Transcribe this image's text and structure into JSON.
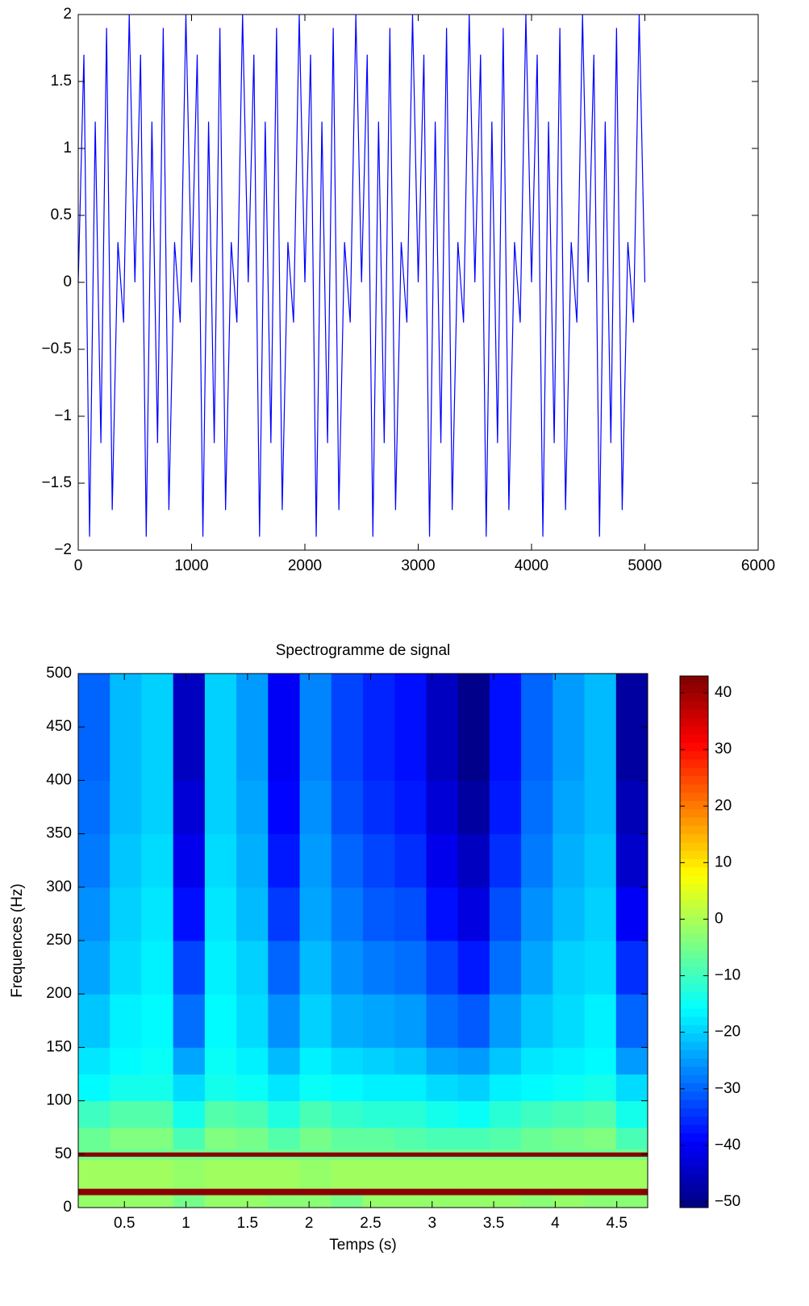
{
  "chart_data": [
    {
      "type": "line",
      "x": [
        0,
        50,
        100,
        150,
        200,
        250,
        300,
        350,
        400,
        450,
        500,
        550,
        600,
        650,
        700,
        750,
        800,
        850,
        900,
        950,
        1000,
        1050,
        1100,
        1150,
        1200,
        1250,
        1300,
        1350,
        1400,
        1450,
        1500,
        1550,
        1600,
        1650,
        1700,
        1750,
        1800,
        1850,
        1900,
        1950,
        2000,
        2050,
        2100,
        2150,
        2200,
        2250,
        2300,
        2350,
        2400,
        2450,
        2500,
        2550,
        2600,
        2650,
        2700,
        2750,
        2800,
        2850,
        2900,
        2950,
        3000,
        3050,
        3100,
        3150,
        3200,
        3250,
        3300,
        3350,
        3400,
        3450,
        3500,
        3550,
        3600,
        3650,
        3700,
        3750,
        3800,
        3850,
        3900,
        3950,
        4000,
        4050,
        4100,
        4150,
        4200,
        4250,
        4300,
        4350,
        4400,
        4450,
        4500,
        4550,
        4600,
        4650,
        4700,
        4750,
        4800,
        4850,
        4900,
        4950,
        5000
      ],
      "series": [
        {
          "color": "#0000ff",
          "values": [
            0,
            1.7,
            -1.9,
            1.2,
            -1.2,
            1.9,
            -1.7,
            0.3,
            -0.3,
            2,
            0,
            1.7,
            -1.9,
            1.2,
            -1.2,
            1.9,
            -1.7,
            0.3,
            -0.3,
            2,
            0,
            1.7,
            -1.9,
            1.2,
            -1.2,
            1.9,
            -1.7,
            0.3,
            -0.3,
            2,
            0,
            1.7,
            -1.9,
            1.2,
            -1.2,
            1.9,
            -1.7,
            0.3,
            -0.3,
            2,
            0,
            1.7,
            -1.9,
            1.2,
            -1.2,
            1.9,
            -1.7,
            0.3,
            -0.3,
            2,
            0,
            1.7,
            -1.9,
            1.2,
            -1.2,
            1.9,
            -1.7,
            0.3,
            -0.3,
            2,
            0,
            1.7,
            -1.9,
            1.2,
            -1.2,
            1.9,
            -1.7,
            0.3,
            -0.3,
            2,
            0,
            1.7,
            -1.9,
            1.2,
            -1.2,
            1.9,
            -1.7,
            0.3,
            -0.3,
            2,
            0,
            1.7,
            -1.9,
            1.2,
            -1.2,
            1.9,
            -1.7,
            0.3,
            -0.3,
            2,
            0,
            1.7,
            -1.9,
            1.2,
            -1.2,
            1.9,
            -1.7,
            0.3,
            -0.3,
            2,
            0
          ]
        }
      ],
      "xlim": [
        0,
        6000
      ],
      "ylim": [
        -2,
        2
      ],
      "xticks": [
        0,
        1000,
        2000,
        3000,
        4000,
        5000,
        6000
      ],
      "yticks": [
        {
          "value": -2,
          "label": "−2"
        },
        {
          "value": -1.5,
          "label": "−1.5"
        },
        {
          "value": -1,
          "label": "−1"
        },
        {
          "value": -0.5,
          "label": "−0.5"
        },
        0,
        0.5,
        1,
        1.5,
        2
      ]
    },
    {
      "type": "heatmap",
      "title": "Spectrogramme de signal",
      "xlabel": "Temps (s)",
      "ylabel": "Frequences (Hz)",
      "xbins": [
        0.125,
        0.382,
        0.639,
        0.896,
        1.153,
        1.41,
        1.667,
        1.924,
        2.181,
        2.438,
        2.695,
        2.952,
        3.209,
        3.466,
        3.723,
        3.98,
        4.237,
        4.494,
        4.751
      ],
      "ybins": [
        0,
        12,
        18,
        45,
        48,
        52,
        55,
        75,
        100,
        125,
        150,
        200,
        250,
        300,
        350,
        400,
        450,
        500
      ],
      "z": [
        [
          -2,
          -2,
          -2,
          -5,
          -2,
          -2,
          -3,
          -3,
          -5,
          -2,
          -2,
          -2,
          -2,
          -2,
          -3,
          -2,
          -3,
          -3
        ],
        [
          42,
          42,
          42,
          42,
          42,
          42,
          42,
          42,
          42,
          42,
          42,
          42,
          42,
          42,
          42,
          42,
          42,
          42
        ],
        [
          -1,
          -1,
          -1,
          -2,
          -1,
          -1,
          -1,
          -2,
          -1,
          -1,
          -1,
          -1,
          -1,
          -1,
          -1,
          -1,
          -1,
          -1
        ],
        [
          -5,
          -5,
          -5,
          -5,
          -5,
          -5,
          -5,
          -5,
          -5,
          -5,
          -5,
          -5,
          -5,
          -5,
          -5,
          -5,
          -5,
          -5
        ],
        [
          42,
          42,
          42,
          42,
          42,
          42,
          42,
          42,
          42,
          42,
          42,
          42,
          42,
          42,
          42,
          42,
          42,
          42
        ],
        [
          -6,
          -6,
          -6,
          -6,
          -6,
          -6,
          -6,
          -6,
          -6,
          -6,
          -6,
          -6,
          -6,
          -6,
          -6,
          -6,
          -6,
          -6
        ],
        [
          -6,
          -4,
          -4,
          -9,
          -4,
          -5,
          -8,
          -5,
          -7,
          -7,
          -8,
          -9,
          -9,
          -8,
          -6,
          -5,
          -4,
          -9
        ],
        [
          -10,
          -8,
          -8,
          -14,
          -8,
          -9,
          -13,
          -9,
          -11,
          -12,
          -12,
          -14,
          -15,
          -12,
          -10,
          -9,
          -8,
          -14
        ],
        [
          -16,
          -14,
          -14,
          -19,
          -14,
          -15,
          -18,
          -15,
          -16,
          -17,
          -17,
          -19,
          -20,
          -17,
          -16,
          -15,
          -14,
          -19
        ],
        [
          -18,
          -16,
          -15,
          -24,
          -15,
          -17,
          -22,
          -17,
          -19,
          -20,
          -21,
          -24,
          -25,
          -21,
          -18,
          -17,
          -16,
          -25
        ],
        [
          -21,
          -17,
          -16,
          -29,
          -16,
          -19,
          -26,
          -20,
          -23,
          -24,
          -25,
          -29,
          -31,
          -25,
          -21,
          -19,
          -17,
          -30
        ],
        [
          -24,
          -19,
          -17,
          -33,
          -17,
          -20,
          -30,
          -22,
          -26,
          -28,
          -29,
          -33,
          -37,
          -29,
          -24,
          -20,
          -19,
          -35
        ],
        [
          -26,
          -20,
          -18,
          -38,
          -18,
          -22,
          -34,
          -24,
          -28,
          -31,
          -32,
          -38,
          -42,
          -32,
          -26,
          -22,
          -20,
          -40
        ],
        [
          -28,
          -21,
          -19,
          -41,
          -19,
          -23,
          -37,
          -25,
          -30,
          -33,
          -35,
          -41,
          -45,
          -35,
          -28,
          -23,
          -21,
          -44
        ],
        [
          -29,
          -22,
          -20,
          -43,
          -20,
          -24,
          -39,
          -26,
          -32,
          -35,
          -37,
          -43,
          -48,
          -37,
          -29,
          -24,
          -22,
          -46
        ],
        [
          -30,
          -22,
          -20,
          -45,
          -20,
          -25,
          -40,
          -27,
          -33,
          -36,
          -38,
          -45,
          -50,
          -38,
          -30,
          -25,
          -22,
          -48
        ],
        [
          -30,
          -22,
          -20,
          -45,
          -20,
          -25,
          -40,
          -27,
          -33,
          -36,
          -38,
          -45,
          -50,
          -38,
          -30,
          -25,
          -22,
          -48
        ]
      ],
      "xlim": [
        0.125,
        4.751
      ],
      "ylim": [
        0,
        500
      ],
      "xticks": [
        0.5,
        1,
        1.5,
        2,
        2.5,
        3,
        3.5,
        4,
        4.5
      ],
      "yticks": [
        0,
        50,
        100,
        150,
        200,
        250,
        300,
        350,
        400,
        450,
        500
      ],
      "colormap": "jet",
      "colorbar": {
        "lim": [
          -51,
          43
        ],
        "ticks": [
          {
            "value": -50,
            "label": "−50"
          },
          {
            "value": -40,
            "label": "−40"
          },
          {
            "value": -30,
            "label": "−30"
          },
          {
            "value": -20,
            "label": "−20"
          },
          {
            "value": -10,
            "label": "−10"
          },
          0,
          10,
          20,
          30,
          40
        ]
      }
    }
  ]
}
